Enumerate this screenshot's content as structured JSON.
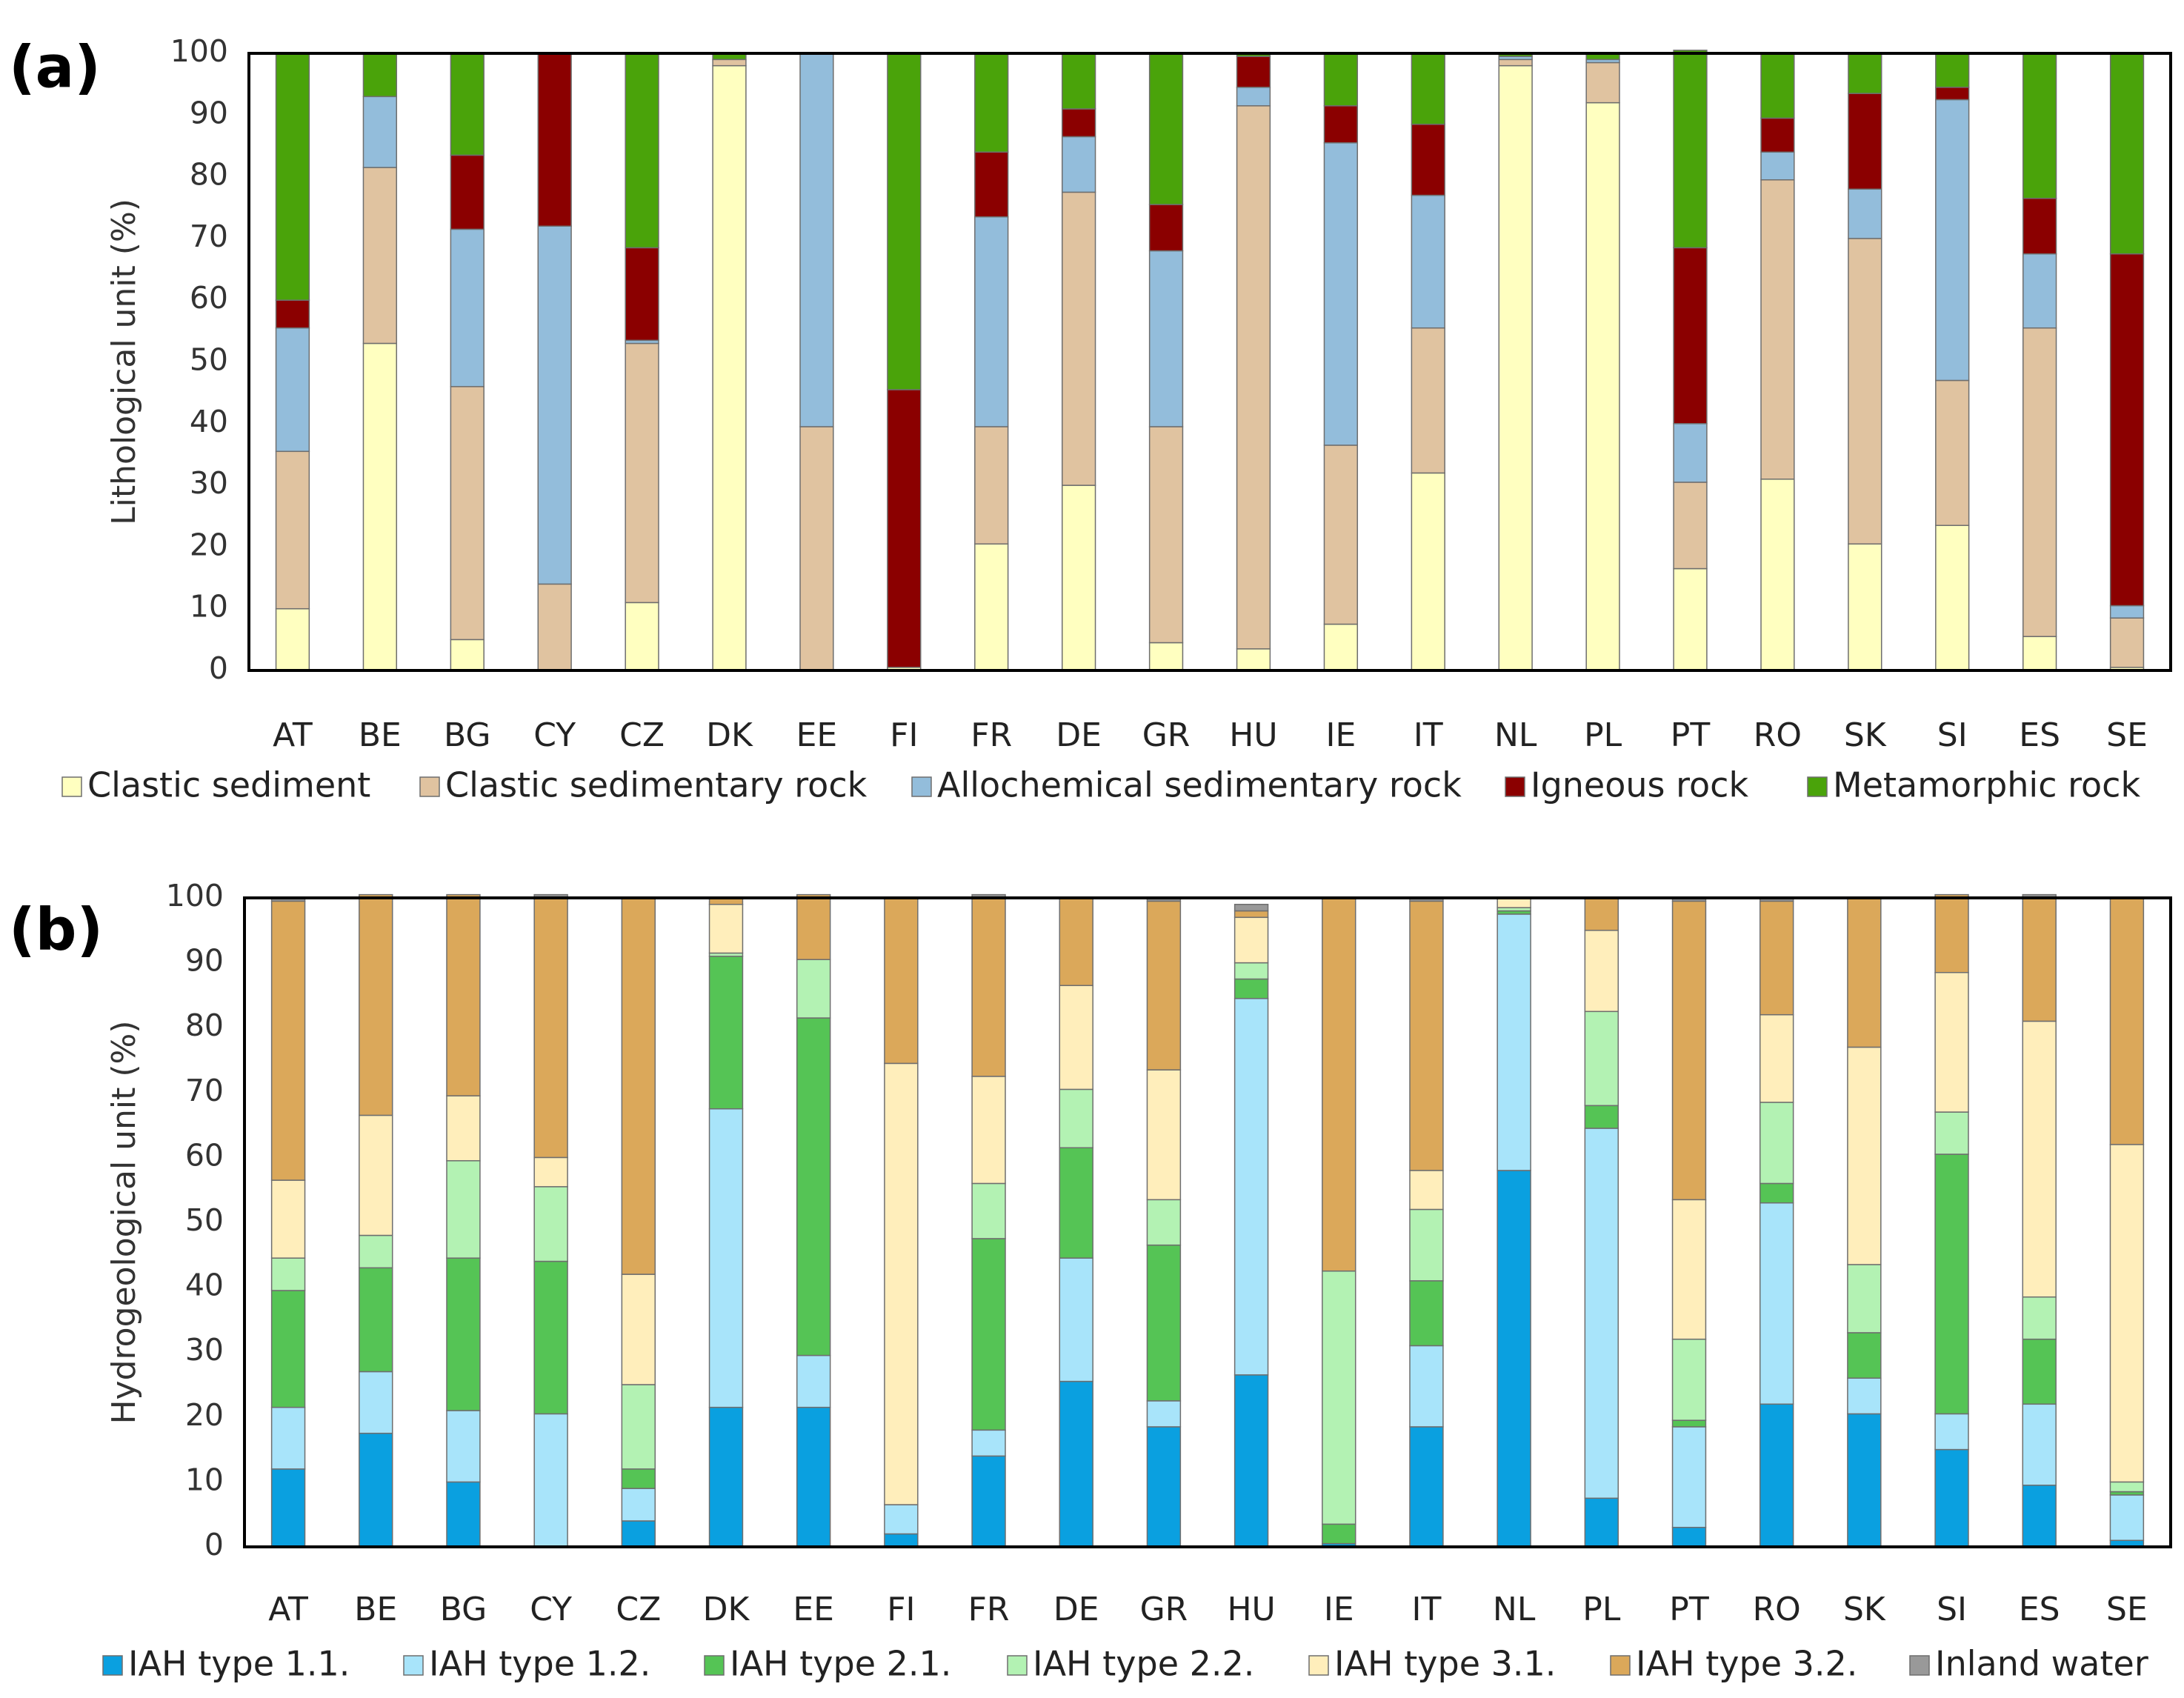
{
  "chart_data": [
    {
      "type": "bar",
      "stacked": true,
      "panel_label": "(a)",
      "ylabel": "Lithological unit (%)",
      "ylim": [
        0,
        100
      ],
      "yticks": [
        "0",
        "10",
        "20",
        "30",
        "40",
        "50",
        "60",
        "70",
        "80",
        "90",
        "100"
      ],
      "legend_position": "bottom",
      "categories": [
        "AT",
        "BE",
        "BG",
        "CY",
        "CZ",
        "DK",
        "EE",
        "FI",
        "FR",
        "DE",
        "GR",
        "HU",
        "IE",
        "IT",
        "NL",
        "PL",
        "PT",
        "RO",
        "SK",
        "SI",
        "ES",
        "SE"
      ],
      "series": [
        {
          "name": "Clastic sediment",
          "color": "#ffffc0",
          "values": [
            10,
            53,
            5,
            0,
            11,
            98,
            0,
            0.5,
            20.5,
            30,
            4.5,
            3.5,
            7.5,
            32,
            98,
            92,
            16.5,
            31,
            20.5,
            23.5,
            5.5,
            0.5
          ]
        },
        {
          "name": "Clastic sedimentary rock",
          "color": "#e0c3a0",
          "values": [
            25.5,
            28.5,
            41,
            14,
            42,
            1,
            39.5,
            0,
            19,
            47.5,
            35,
            88,
            29,
            23.5,
            1,
            6.5,
            14,
            48.5,
            49.5,
            23.5,
            50,
            8
          ]
        },
        {
          "name": "Allochemical sedimentary rock",
          "color": "#93bddb",
          "values": [
            20,
            11.5,
            25.5,
            58,
            0.5,
            0,
            60.5,
            0,
            34,
            9,
            28.5,
            3,
            49,
            21.5,
            0.5,
            0.5,
            9.5,
            4.5,
            8,
            45.5,
            12,
            2
          ]
        },
        {
          "name": "Igneous rock",
          "color": "#8b0000",
          "values": [
            4.5,
            0,
            12,
            28,
            15,
            0,
            0,
            45,
            10.5,
            4.5,
            7.5,
            5,
            6,
            11.5,
            0,
            0,
            28.5,
            5.5,
            15.5,
            2,
            9,
            57
          ]
        },
        {
          "name": "Metamorphic rock",
          "color": "#4aa30a",
          "values": [
            40,
            7,
            16.5,
            0,
            31.5,
            1,
            0,
            54.5,
            16,
            9,
            24.5,
            0.5,
            8.5,
            11.5,
            0.5,
            1,
            32,
            10.5,
            6.5,
            5.5,
            23.5,
            32.5
          ]
        }
      ]
    },
    {
      "type": "bar",
      "stacked": true,
      "panel_label": "(b)",
      "ylabel": "Hydrogeological unit (%)",
      "ylim": [
        0,
        100
      ],
      "yticks": [
        "0",
        "10",
        "20",
        "30",
        "40",
        "50",
        "60",
        "70",
        "80",
        "90",
        "100"
      ],
      "legend_position": "bottom",
      "categories": [
        "AT",
        "BE",
        "BG",
        "CY",
        "CZ",
        "DK",
        "EE",
        "FI",
        "FR",
        "DE",
        "GR",
        "HU",
        "IE",
        "IT",
        "NL",
        "PL",
        "PT",
        "RO",
        "SK",
        "SI",
        "ES",
        "SE"
      ],
      "series": [
        {
          "name": "IAH type 1.1.",
          "color": "#0aa0e0",
          "values": [
            12,
            17.5,
            10,
            0,
            4,
            21.5,
            21.5,
            2,
            14,
            25.5,
            18.5,
            26.5,
            0.5,
            18.5,
            58,
            7.5,
            3,
            22,
            20.5,
            15,
            9.5,
            1
          ]
        },
        {
          "name": "IAH type 1.2.",
          "color": "#a8e4fa",
          "values": [
            9.5,
            9.5,
            11,
            20.5,
            5,
            46,
            8,
            4.5,
            4,
            19,
            4,
            58,
            0,
            12.5,
            39.5,
            57,
            15.5,
            31,
            5.5,
            5.5,
            12.5,
            7
          ]
        },
        {
          "name": "IAH type 2.1.",
          "color": "#55c455",
          "values": [
            18,
            16,
            23.5,
            23.5,
            3,
            23.5,
            52,
            0,
            29.5,
            17,
            24,
            3,
            3,
            10,
            0.5,
            3.5,
            1,
            3,
            7,
            40,
            10,
            0.5
          ]
        },
        {
          "name": "IAH type 2.2.",
          "color": "#b3f2b3",
          "values": [
            5,
            5,
            15,
            11.5,
            13,
            0.5,
            9,
            0,
            8.5,
            9,
            7,
            2.5,
            39,
            11,
            0.5,
            14.5,
            12.5,
            12.5,
            10.5,
            6.5,
            6.5,
            1.5
          ]
        },
        {
          "name": "IAH type 3.1.",
          "color": "#ffeebb",
          "values": [
            12,
            18.5,
            10,
            4.5,
            17,
            7.5,
            0,
            68,
            16.5,
            16,
            20,
            7,
            0,
            6,
            1.5,
            12.5,
            21.5,
            13.5,
            33.5,
            21.5,
            42.5,
            52
          ]
        },
        {
          "name": "IAH type 3.2.",
          "color": "#dba85a",
          "values": [
            43,
            34,
            31,
            40,
            58,
            1,
            10,
            25.5,
            27.5,
            13.5,
            26,
            1,
            57.5,
            41.5,
            0,
            5,
            46,
            17.5,
            23,
            12,
            19,
            38
          ]
        },
        {
          "name": "Inland water",
          "color": "#999999",
          "values": [
            0.5,
            0,
            0,
            0.5,
            0,
            0,
            0,
            0,
            0.5,
            0,
            0.5,
            1,
            0,
            0.5,
            0,
            0,
            0.5,
            0.5,
            0,
            0,
            0.5,
            0
          ]
        }
      ]
    }
  ]
}
